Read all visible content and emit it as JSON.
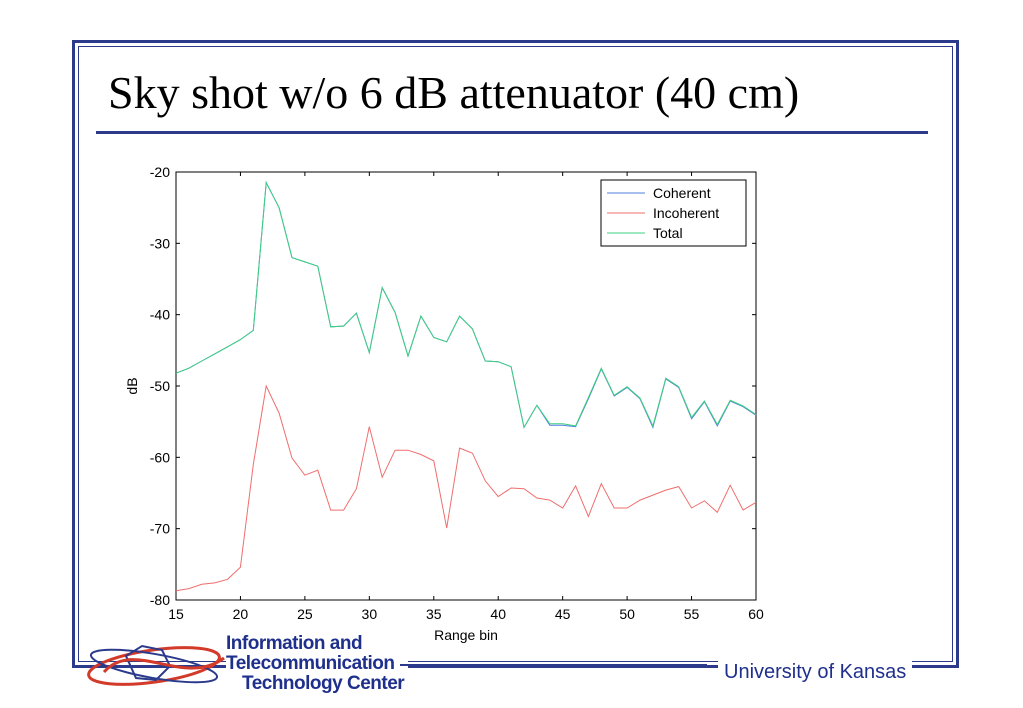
{
  "slide": {
    "title": "Sky shot w/o 6 dB attenuator (40 cm)",
    "footer_right": "University of Kansas",
    "logo_lines": [
      "Information and",
      "Telecommunication",
      "Technology Center"
    ],
    "accent_color": "#2c3a8c"
  },
  "chart_data": {
    "type": "line",
    "xlabel": "Range bin",
    "ylabel": "dB",
    "xlim": [
      15,
      60
    ],
    "ylim": [
      -80,
      -20
    ],
    "xticks": [
      15,
      20,
      25,
      30,
      35,
      40,
      45,
      50,
      55,
      60
    ],
    "yticks": [
      -20,
      -30,
      -40,
      -50,
      -60,
      -70,
      -80
    ],
    "legend_position": "top-right",
    "grid": false,
    "x": [
      15,
      16,
      17,
      18,
      19,
      20,
      21,
      22,
      23,
      24,
      25,
      26,
      27,
      28,
      29,
      30,
      31,
      32,
      33,
      34,
      35,
      36,
      37,
      38,
      39,
      40,
      41,
      42,
      43,
      44,
      45,
      46,
      47,
      48,
      49,
      50,
      51,
      52,
      53,
      54,
      55,
      56,
      57,
      58,
      59,
      60
    ],
    "series": [
      {
        "name": "Coherent",
        "color": "#4f7fdf",
        "values": [
          -48.2,
          -47.5,
          -46.5,
          -45.5,
          -44.5,
          -43.5,
          -42.2,
          -21.5,
          -25,
          -32,
          -32.6,
          -33.2,
          -41.7,
          -41.6,
          -39.8,
          -45.3,
          -36.2,
          -39.7,
          -45.8,
          -40.2,
          -43.2,
          -43.8,
          -40.2,
          -42,
          -46.5,
          -46.6,
          -47.3,
          -55.8,
          -52.7,
          -55.5,
          -55.5,
          -55.7,
          -51.8,
          -47.6,
          -51.4,
          -50.2,
          -51.8,
          -55.8,
          -49,
          -50.2,
          -54.6,
          -52.2,
          -55.6,
          -52.1,
          -52.9,
          -54.1
        ]
      },
      {
        "name": "Incoherent",
        "color": "#ef6e6e",
        "values": [
          -78.7,
          -78.4,
          -77.8,
          -77.6,
          -77.1,
          -75.4,
          -61,
          -50,
          -53.8,
          -60.1,
          -62.5,
          -61.8,
          -67.4,
          -67.4,
          -64.4,
          -55.7,
          -62.8,
          -59,
          -59,
          -59.6,
          -60.5,
          -69.9,
          -58.7,
          -59.4,
          -63.3,
          -65.5,
          -64.3,
          -64.4,
          -65.7,
          -66,
          -67.1,
          -64,
          -68.3,
          -63.7,
          -67.1,
          -67.1,
          -66,
          -65.3,
          -64.6,
          -64.1,
          -67.1,
          -66.1,
          -67.7,
          -63.9,
          -67.4,
          -66.3
        ]
      },
      {
        "name": "Total",
        "color": "#3fcf7f",
        "values": [
          -48.2,
          -47.5,
          -46.5,
          -45.5,
          -44.5,
          -43.5,
          -42.2,
          -21.5,
          -25,
          -32,
          -32.6,
          -33.2,
          -41.7,
          -41.6,
          -39.8,
          -45.3,
          -36.2,
          -39.7,
          -45.8,
          -40.2,
          -43.2,
          -43.8,
          -40.2,
          -42,
          -46.5,
          -46.6,
          -47.3,
          -55.8,
          -52.7,
          -55.3,
          -55.3,
          -55.6,
          -51.6,
          -47.5,
          -51.3,
          -50.1,
          -51.7,
          -55.6,
          -48.9,
          -50.1,
          -54.4,
          -52.1,
          -55.4,
          -52,
          -52.8,
          -54
        ]
      }
    ]
  }
}
